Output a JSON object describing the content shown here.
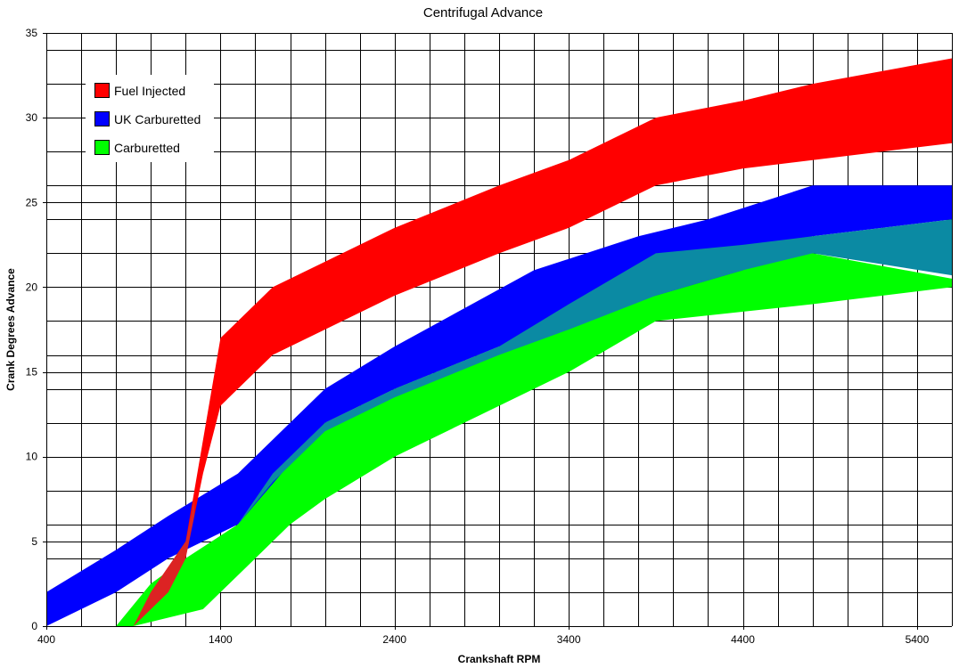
{
  "chart_data": {
    "type": "area",
    "title": "Centrifugal Advance",
    "xlabel": "Crankshaft RPM",
    "ylabel": "Crank Degrees Advance",
    "xlim": [
      400,
      5600
    ],
    "ylim": [
      0,
      35
    ],
    "x_ticks": [
      400,
      1400,
      2400,
      3400,
      4400,
      5400
    ],
    "y_ticks": [
      0,
      5,
      10,
      15,
      20,
      25,
      30,
      35
    ],
    "grid": true,
    "x_minor_grid_step": 200,
    "y_minor_grid_step": 2,
    "legend_position": "top-left",
    "overlap_color": "#0b8aa3",
    "overlap_region": {
      "upper": [
        [
          1100,
          2
        ],
        [
          1400,
          5
        ],
        [
          1500,
          6
        ],
        [
          1700,
          9
        ],
        [
          2000,
          12
        ],
        [
          2400,
          14
        ],
        [
          3000,
          16.5
        ],
        [
          3400,
          19
        ],
        [
          3900,
          22
        ],
        [
          4400,
          22.5
        ],
        [
          4800,
          23
        ],
        [
          5600,
          24
        ]
      ],
      "lower": [
        [
          1100,
          2
        ],
        [
          1400,
          5
        ],
        [
          1500,
          6
        ],
        [
          1700,
          8.5
        ],
        [
          2000,
          11.5
        ],
        [
          2400,
          13.5
        ],
        [
          3000,
          16
        ],
        [
          3400,
          17.5
        ],
        [
          3900,
          19.5
        ],
        [
          4400,
          21
        ],
        [
          4800,
          22
        ],
        [
          5600,
          20.7
        ]
      ]
    },
    "series": [
      {
        "name": "Carburetted",
        "color": "#00ff00",
        "upper": [
          [
            800,
            0
          ],
          [
            1000,
            2.5
          ],
          [
            1200,
            4
          ],
          [
            1500,
            6
          ],
          [
            1700,
            9
          ],
          [
            2000,
            12
          ],
          [
            2400,
            14
          ],
          [
            3000,
            16.5
          ],
          [
            3400,
            19
          ],
          [
            3900,
            22
          ],
          [
            4800,
            22
          ],
          [
            5600,
            20.5
          ]
        ],
        "lower": [
          [
            800,
            0
          ],
          [
            900,
            0
          ],
          [
            1300,
            1
          ],
          [
            1600,
            4
          ],
          [
            1800,
            6
          ],
          [
            2000,
            7.5
          ],
          [
            2400,
            10
          ],
          [
            2900,
            12.5
          ],
          [
            3400,
            15
          ],
          [
            3900,
            18
          ],
          [
            4800,
            19
          ],
          [
            5600,
            20
          ]
        ]
      },
      {
        "name": "UK Carburetted",
        "color": "#0000ff",
        "upper": [
          [
            400,
            2
          ],
          [
            800,
            4.5
          ],
          [
            1100,
            6.5
          ],
          [
            1500,
            9
          ],
          [
            2000,
            14
          ],
          [
            2400,
            16.5
          ],
          [
            3200,
            21
          ],
          [
            3800,
            23
          ],
          [
            4200,
            24
          ],
          [
            4800,
            26
          ],
          [
            5600,
            26
          ]
        ],
        "lower": [
          [
            400,
            0
          ],
          [
            800,
            2
          ],
          [
            1100,
            4
          ],
          [
            1500,
            6
          ],
          [
            2000,
            12
          ],
          [
            2400,
            14
          ],
          [
            3000,
            16.5
          ],
          [
            3400,
            18
          ],
          [
            3900,
            19.5
          ],
          [
            4400,
            21
          ],
          [
            4800,
            23
          ],
          [
            5600,
            24
          ]
        ]
      },
      {
        "name": "Fuel Injected",
        "color": "#ff0000",
        "upper": [
          [
            900,
            0
          ],
          [
            1000,
            2
          ],
          [
            1200,
            5
          ],
          [
            1400,
            17
          ],
          [
            1700,
            20
          ],
          [
            2000,
            21.5
          ],
          [
            2400,
            23.5
          ],
          [
            3000,
            26
          ],
          [
            3400,
            27.5
          ],
          [
            3900,
            30
          ],
          [
            4400,
            31
          ],
          [
            4800,
            32
          ],
          [
            5600,
            33.5
          ]
        ],
        "lower": [
          [
            900,
            0
          ],
          [
            1100,
            2
          ],
          [
            1200,
            4
          ],
          [
            1300,
            9
          ],
          [
            1400,
            13
          ],
          [
            1700,
            16
          ],
          [
            2000,
            17.5
          ],
          [
            2400,
            19.5
          ],
          [
            3000,
            22
          ],
          [
            3400,
            23.5
          ],
          [
            3900,
            26
          ],
          [
            4400,
            27
          ],
          [
            4800,
            27.5
          ],
          [
            5600,
            28.5
          ]
        ]
      }
    ],
    "legend": [
      {
        "label": "Fuel Injected",
        "color": "#ff0000"
      },
      {
        "label": "UK Carburetted",
        "color": "#0000ff"
      },
      {
        "label": "Carburetted",
        "color": "#00ff00"
      }
    ]
  }
}
